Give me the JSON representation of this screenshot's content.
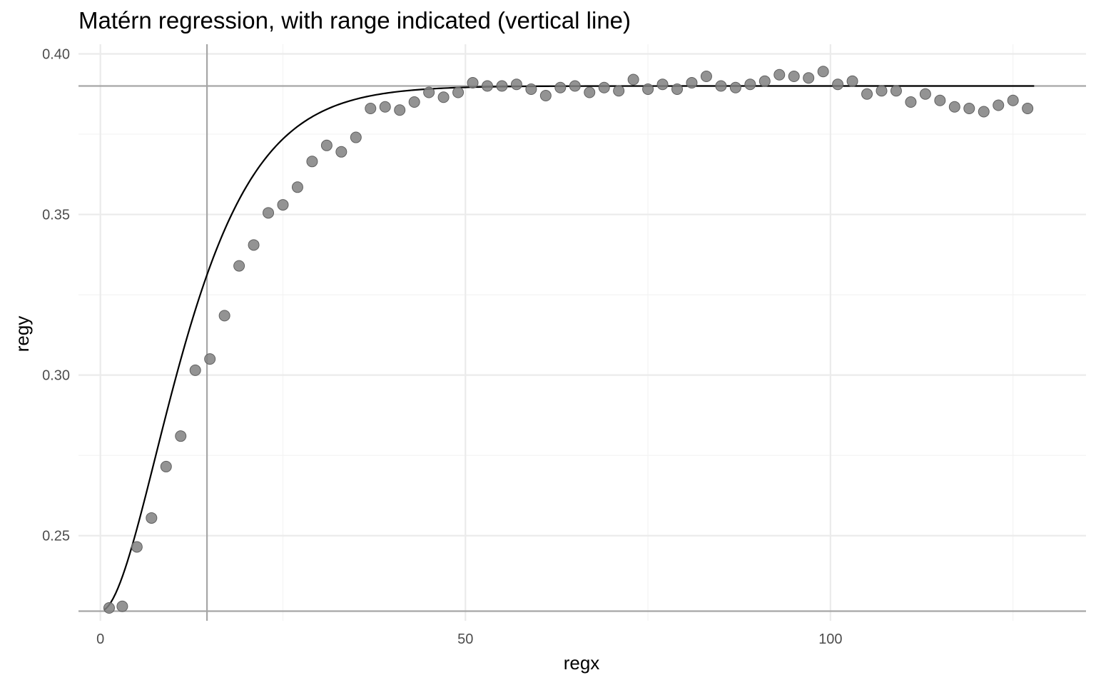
{
  "chart_data": {
    "type": "scatter",
    "title": "Matérn regression, with range indicated (vertical line)",
    "xlabel": "regx",
    "ylabel": "regy",
    "xlim": [
      -3,
      135
    ],
    "ylim": [
      0.2235,
      0.403
    ],
    "x_ticks": [
      0,
      50,
      100
    ],
    "x_tick_labels": [
      "0",
      "50",
      "100"
    ],
    "x_minor_ticks": [
      25,
      75,
      125
    ],
    "y_ticks": [
      0.25,
      0.3,
      0.35,
      0.4
    ],
    "y_tick_labels": [
      "0.25",
      "0.30",
      "0.35",
      "0.40"
    ],
    "y_minor_ticks": [
      0.275,
      0.325,
      0.375
    ],
    "grid": true,
    "range_vline_x": 14.6,
    "hlines_y": [
      0.2265,
      0.39
    ],
    "fit_curve": {
      "nugget": 0.2265,
      "sill": 0.39,
      "x_start": 0.5,
      "x_end": 127.9
    },
    "points": {
      "x": [
        1.2,
        3.0,
        5.0,
        7.0,
        9.0,
        11.0,
        13.0,
        15.0,
        17.0,
        19.0,
        21.0,
        23.0,
        25.0,
        27.0,
        29.0,
        31.0,
        33.0,
        35.0,
        37.0,
        39.0,
        41.0,
        43.0,
        45.0,
        47.0,
        49.0,
        51.0,
        53.0,
        55.0,
        57.0,
        59.0,
        61.0,
        63.0,
        65.0,
        67.0,
        69.0,
        71.0,
        73.0,
        75.0,
        77.0,
        79.0,
        81.0,
        83.0,
        85.0,
        87.0,
        89.0,
        91.0,
        93.0,
        95.0,
        97.0,
        99.0,
        101.0,
        103.0,
        105.0,
        107.0,
        109.0,
        111.0,
        113.0,
        115.0,
        117.0,
        119.0,
        121.0,
        123.0,
        125.0,
        127.0
      ],
      "y": [
        0.2275,
        0.228,
        0.2465,
        0.2555,
        0.2715,
        0.281,
        0.3015,
        0.305,
        0.3185,
        0.334,
        0.3405,
        0.3505,
        0.353,
        0.3585,
        0.3665,
        0.3715,
        0.3695,
        0.374,
        0.383,
        0.3835,
        0.3825,
        0.385,
        0.388,
        0.3865,
        0.388,
        0.391,
        0.39,
        0.39,
        0.3905,
        0.389,
        0.387,
        0.3895,
        0.39,
        0.388,
        0.3895,
        0.3885,
        0.392,
        0.389,
        0.3905,
        0.389,
        0.391,
        0.393,
        0.39,
        0.3895,
        0.3905,
        0.3915,
        0.3935,
        0.393,
        0.3925,
        0.3945,
        0.3905,
        0.3915,
        0.3875,
        0.3885,
        0.3885,
        0.385,
        0.3875,
        0.3855,
        0.3835,
        0.383,
        0.382,
        0.384,
        0.3855,
        0.383
      ]
    }
  }
}
